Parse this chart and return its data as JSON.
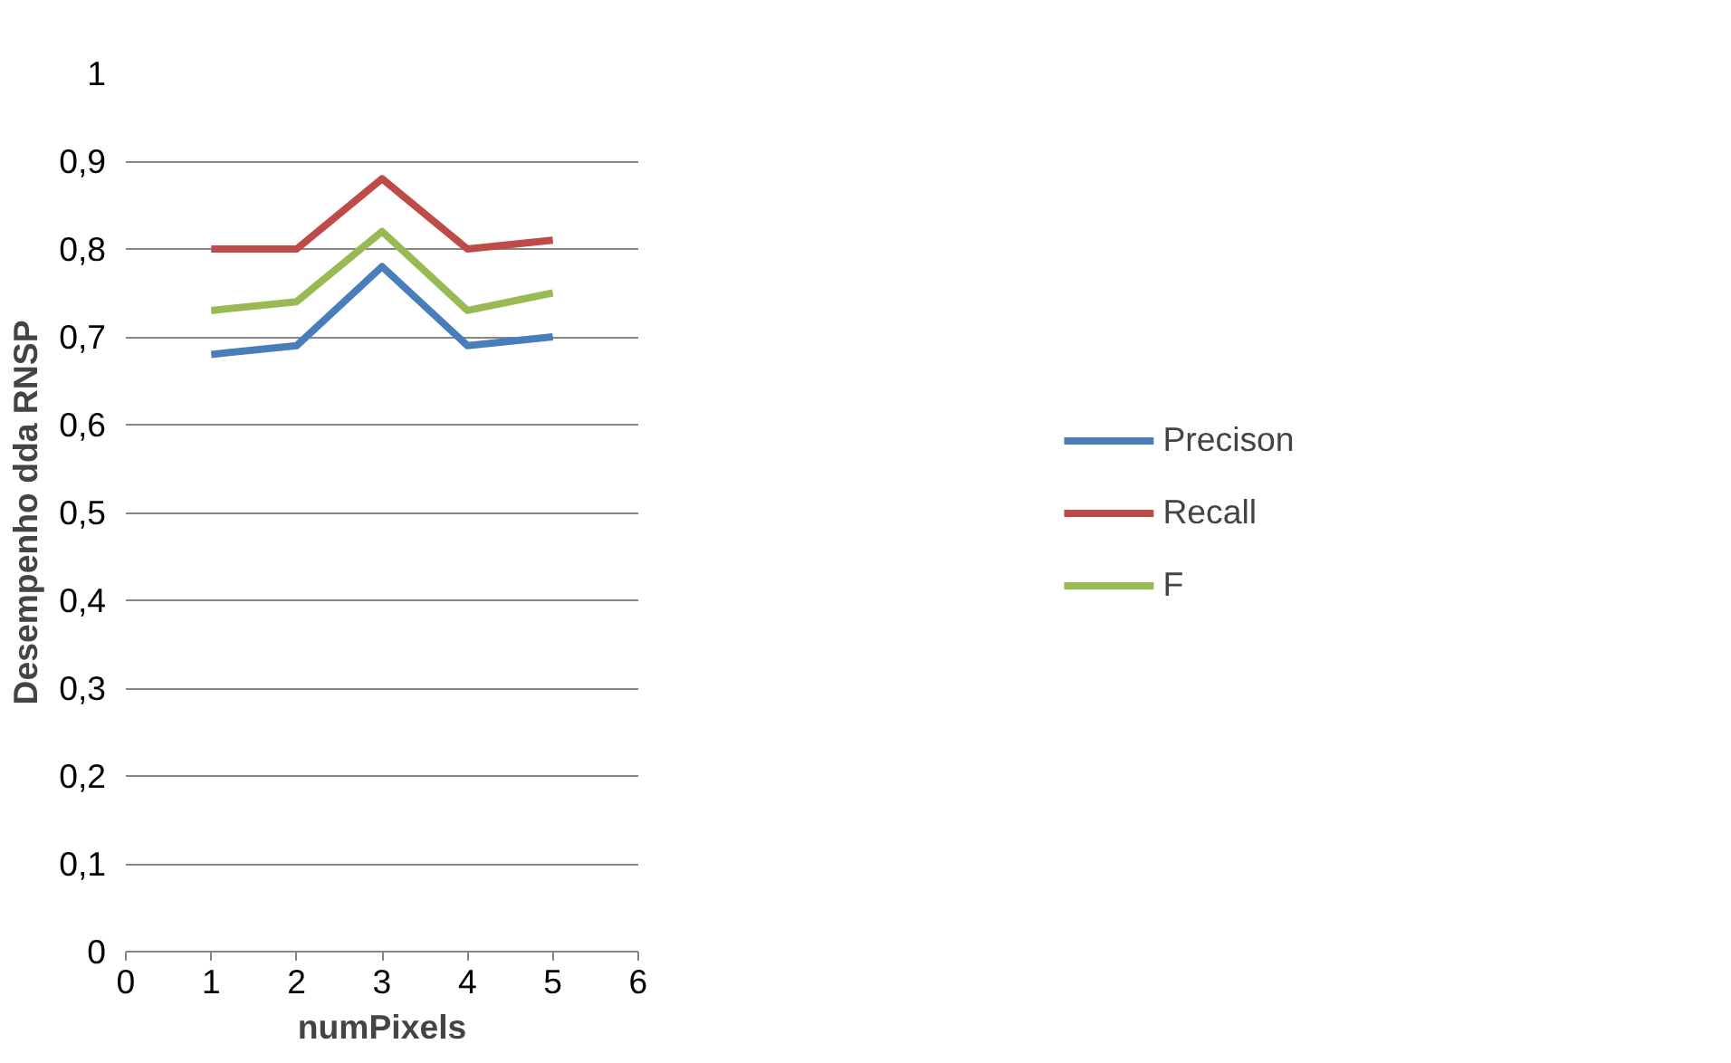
{
  "chart_data": {
    "type": "line",
    "xlabel": "numPixels",
    "ylabel": "Desempenho dda RNSP",
    "x": [
      1,
      2,
      3,
      4,
      5
    ],
    "series": [
      {
        "name": "Precison",
        "color": "#4a7ebb",
        "values": [
          0.68,
          0.69,
          0.78,
          0.69,
          0.7
        ]
      },
      {
        "name": "Recall",
        "color": "#be4b48",
        "values": [
          0.8,
          0.8,
          0.88,
          0.8,
          0.81
        ]
      },
      {
        "name": "F",
        "color": "#98b954",
        "values": [
          0.73,
          0.74,
          0.82,
          0.73,
          0.75
        ]
      }
    ],
    "xlim": [
      0,
      6
    ],
    "ylim": [
      0,
      1
    ],
    "xticks": [
      0,
      1,
      2,
      3,
      4,
      5,
      6
    ],
    "yticks": [
      0,
      {
        "value": 0.1,
        "label": "0,1"
      },
      {
        "value": 0.2,
        "label": "0,2"
      },
      {
        "value": 0.3,
        "label": "0,3"
      },
      {
        "value": 0.4,
        "label": "0,4"
      },
      {
        "value": 0.5,
        "label": "0,5"
      },
      {
        "value": 0.6,
        "label": "0,6"
      },
      {
        "value": 0.7,
        "label": "0,7"
      },
      {
        "value": 0.8,
        "label": "0,8"
      },
      {
        "value": 0.9,
        "label": "0,9"
      },
      1
    ],
    "grid": "y",
    "legend": "right",
    "marker": "none",
    "line_style": "solid"
  }
}
